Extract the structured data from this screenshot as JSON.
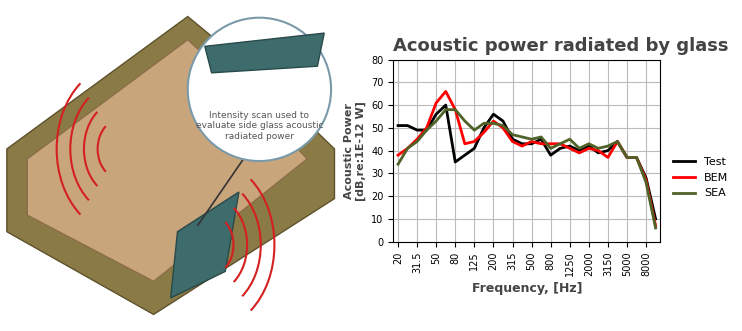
{
  "chart_data": {
    "type": "line",
    "title": "Acoustic power radiated by glass",
    "x_label": "Frequency, [Hz]",
    "y_label": "Acoustic Power\n[dB,re:1E-12 W]",
    "annotation": "Intensity scan used to\nevaluate side glass acoustic\nradiated power",
    "categories": [
      "20",
      null,
      "31.5",
      null,
      "50",
      null,
      "80",
      null,
      "125",
      null,
      "200",
      null,
      "315",
      null,
      "500",
      null,
      "800",
      null,
      "1250",
      null,
      "2000",
      null,
      "3150",
      null,
      "5000",
      null,
      "8000",
      null
    ],
    "series": [
      {
        "name": "Test",
        "color": "#000000",
        "values": [
          51,
          51,
          49,
          49,
          56,
          60,
          35,
          38,
          41,
          50,
          56,
          53,
          45,
          43,
          43,
          45,
          38,
          41,
          42,
          40,
          42,
          39,
          40,
          44,
          37,
          37,
          28,
          10
        ]
      },
      {
        "name": "BEM",
        "color": "#ff0000",
        "values": [
          38,
          41,
          45,
          50,
          61,
          66,
          58,
          43,
          44,
          48,
          53,
          50,
          44,
          42,
          44,
          43,
          43,
          43,
          41,
          39,
          41,
          40,
          37,
          44,
          37,
          37,
          27,
          7
        ]
      },
      {
        "name": "SEA",
        "color": "#4f6228",
        "values": [
          34,
          41,
          44,
          49,
          53,
          58,
          58,
          53,
          49,
          52,
          52,
          51,
          47,
          46,
          45,
          46,
          41,
          43,
          45,
          41,
          43,
          41,
          42,
          44,
          37,
          37,
          26,
          6
        ]
      }
    ],
    "ylim": [
      0,
      80
    ],
    "yticks": [
      0,
      10,
      20,
      30,
      40,
      50,
      60,
      70,
      80
    ],
    "grid": true,
    "legend": "right"
  }
}
